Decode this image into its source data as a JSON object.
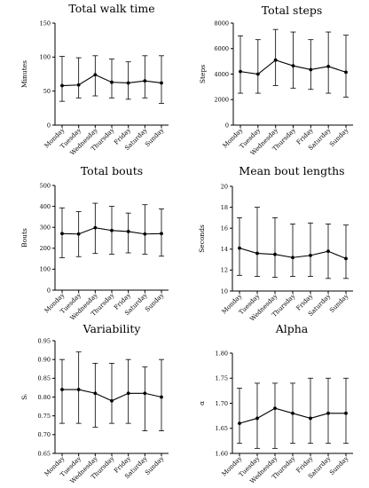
{
  "chart_data": [
    {
      "type": "line",
      "title": "Total walk time",
      "ylabel": "Minutes",
      "categories": [
        "Monday",
        "Tuesday",
        "Wednesday",
        "Thursday",
        "Friday",
        "Saturday",
        "Sunday"
      ],
      "values": [
        58,
        59,
        74,
        63,
        62,
        65,
        62
      ],
      "error_low": [
        35,
        40,
        43,
        40,
        38,
        40,
        32
      ],
      "error_high": [
        101,
        99,
        102,
        97,
        93,
        102,
        102
      ],
      "ylim": [
        0,
        150
      ],
      "yticks": [
        "0",
        "50",
        "100",
        "150"
      ],
      "grid": false
    },
    {
      "type": "line",
      "title": "Total steps",
      "ylabel": "Steps",
      "categories": [
        "Monday",
        "Tuesday",
        "Wednesday",
        "Thursday",
        "Friday",
        "Saturday",
        "Sunday"
      ],
      "values": [
        4200,
        4000,
        5100,
        4650,
        4350,
        4600,
        4150
      ],
      "error_low": [
        2500,
        2500,
        3100,
        2900,
        2800,
        2500,
        2200
      ],
      "error_high": [
        7000,
        6700,
        7500,
        7300,
        6700,
        7300,
        7050
      ],
      "ylim": [
        0,
        8000
      ],
      "yticks": [
        "0",
        "2000",
        "4000",
        "6000",
        "8000"
      ],
      "grid": false
    },
    {
      "type": "line",
      "title": "Total bouts",
      "ylabel": "Bouts",
      "categories": [
        "Monday",
        "Tuesday",
        "Wednesday",
        "Thursday",
        "Friday",
        "Saturday",
        "Sunday"
      ],
      "values": [
        270,
        268,
        298,
        285,
        280,
        268,
        270
      ],
      "error_low": [
        155,
        160,
        175,
        172,
        178,
        172,
        162
      ],
      "error_high": [
        393,
        375,
        415,
        400,
        368,
        408,
        388
      ],
      "ylim": [
        0,
        500
      ],
      "yticks": [
        "0",
        "100",
        "200",
        "300",
        "400",
        "500"
      ],
      "grid": false
    },
    {
      "type": "line",
      "title": "Mean bout lengths",
      "ylabel": "Seconds",
      "categories": [
        "Monday",
        "Tuesday",
        "Wednesday",
        "Thursday",
        "Friday",
        "Saturday",
        "Sunday"
      ],
      "values": [
        14.1,
        13.6,
        13.5,
        13.2,
        13.4,
        13.8,
        13.1
      ],
      "error_low": [
        11.5,
        11.4,
        11.3,
        11.4,
        11.4,
        11.2,
        11.2
      ],
      "error_high": [
        17.0,
        18.0,
        17.0,
        16.4,
        16.5,
        16.4,
        16.3
      ],
      "ylim": [
        10,
        20
      ],
      "yticks": [
        "10",
        "12",
        "14",
        "16",
        "18",
        "20"
      ],
      "grid": false
    },
    {
      "type": "line",
      "title": "Variability",
      "ylabel": "Sᵢ",
      "categories": [
        "Monday",
        "Tuesday",
        "Wednesday",
        "Thursday",
        "Friday",
        "Saturday",
        "Sunday"
      ],
      "values": [
        0.82,
        0.82,
        0.81,
        0.79,
        0.81,
        0.81,
        0.8
      ],
      "error_low": [
        0.73,
        0.73,
        0.72,
        0.73,
        0.73,
        0.71,
        0.71
      ],
      "error_high": [
        0.9,
        0.92,
        0.89,
        0.89,
        0.9,
        0.88,
        0.9
      ],
      "ylim": [
        0.65,
        0.95
      ],
      "yticks": [
        "0.65",
        "0.70",
        "0.75",
        "0.80",
        "0.85",
        "0.90",
        "0.95"
      ],
      "grid": false
    },
    {
      "type": "line",
      "title": "Alpha",
      "ylabel": "α",
      "categories": [
        "Monday",
        "Tuesday",
        "Wednesday",
        "Thursday",
        "Friday",
        "Saturday",
        "Sunday"
      ],
      "values": [
        1.66,
        1.67,
        1.69,
        1.68,
        1.67,
        1.68,
        1.68
      ],
      "error_low": [
        1.62,
        1.61,
        1.61,
        1.62,
        1.62,
        1.62,
        1.62
      ],
      "error_high": [
        1.73,
        1.74,
        1.74,
        1.74,
        1.75,
        1.75,
        1.75
      ],
      "ylim": [
        1.6,
        1.8
      ],
      "yticks": [
        "1.60",
        "1.65",
        "1.70",
        "1.75",
        "1.80"
      ],
      "grid": false
    }
  ]
}
